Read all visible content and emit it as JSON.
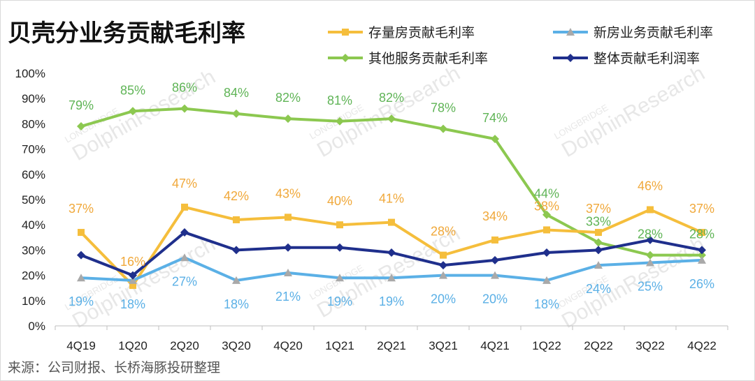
{
  "chart_data": {
    "type": "line",
    "title": "贝壳分业务贡献毛利率",
    "source": "来源：公司财报、长桥海豚投研整理",
    "categories": [
      "4Q19",
      "1Q20",
      "2Q20",
      "3Q20",
      "4Q20",
      "1Q21",
      "2Q21",
      "3Q21",
      "4Q21",
      "1Q22",
      "2Q22",
      "3Q22",
      "4Q22"
    ],
    "ylim": [
      0,
      100
    ],
    "yticks": [
      0,
      10,
      20,
      30,
      40,
      50,
      60,
      70,
      80,
      90,
      100
    ],
    "y_unit": "%",
    "grid": false,
    "legend_position": "top-right",
    "series": [
      {
        "name": "存量房贡献毛利率",
        "color": "#F5BE3C",
        "marker": "square",
        "label_color": "#F0A83A",
        "values": [
          37,
          16,
          47,
          42,
          43,
          40,
          41,
          28,
          34,
          38,
          37,
          46,
          37
        ],
        "labels_shown": true
      },
      {
        "name": "新房业务贡献毛利率",
        "color": "#5BB0E6",
        "marker": "triangle",
        "label_color": "#5BB0E6",
        "values": [
          19,
          18,
          27,
          18,
          21,
          19,
          19,
          20,
          20,
          18,
          24,
          25,
          26
        ],
        "labels_shown": true
      },
      {
        "name": "其他服务贡献毛利率",
        "color": "#8CC850",
        "marker": "diamond",
        "label_color": "#5FB456",
        "values": [
          79,
          85,
          86,
          84,
          82,
          81,
          82,
          78,
          74,
          44,
          33,
          28,
          28
        ],
        "labels_shown": true
      },
      {
        "name": "整体贡献毛利润率",
        "color": "#1F2F8C",
        "marker": "diamond",
        "label_color": "#1F2F8C",
        "values": [
          28,
          20,
          37,
          30,
          31,
          31,
          29,
          24,
          26,
          29,
          30,
          34,
          30
        ],
        "labels_shown": false
      }
    ]
  },
  "watermark": {
    "line1": "LONGBRIDGE",
    "line2": "DolphinResearch"
  }
}
